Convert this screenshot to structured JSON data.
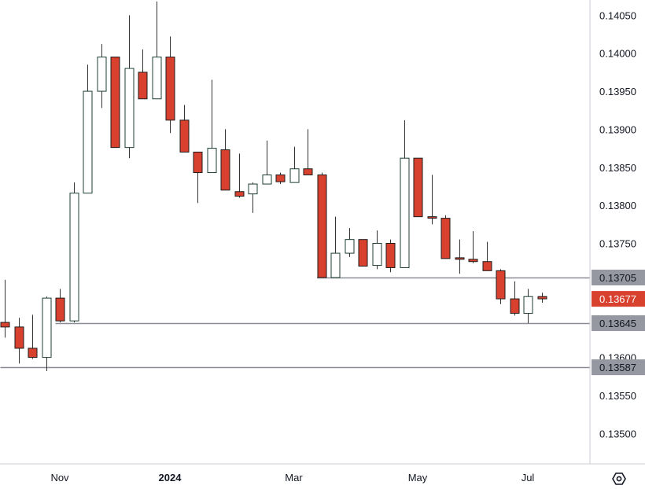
{
  "chart_data": {
    "type": "candlestick",
    "title": "",
    "xlabel": "",
    "ylabel": "",
    "ylim": [
      0.1346,
      0.1407
    ],
    "y_ticks": [
      {
        "value": 0.135,
        "label": "0.13500"
      },
      {
        "value": 0.1355,
        "label": "0.13550"
      },
      {
        "value": 0.136,
        "label": "0.13600"
      },
      {
        "value": 0.1375,
        "label": "0.13750"
      },
      {
        "value": 0.138,
        "label": "0.13800"
      },
      {
        "value": 0.1385,
        "label": "0.13850"
      },
      {
        "value": 0.139,
        "label": "0.13900"
      },
      {
        "value": 0.1395,
        "label": "0.13950"
      },
      {
        "value": 0.14,
        "label": "0.14000"
      },
      {
        "value": 0.1405,
        "label": "0.14050"
      }
    ],
    "x_ticks": [
      {
        "index": 4,
        "label": "Nov",
        "bold": false
      },
      {
        "index": 12,
        "label": "2024",
        "bold": true
      },
      {
        "index": 21,
        "label": "Mar",
        "bold": false
      },
      {
        "index": 30,
        "label": "May",
        "bold": false
      },
      {
        "index": 38,
        "label": "Jul",
        "bold": false
      }
    ],
    "candles": [
      {
        "o": 0.13646,
        "h": 0.13702,
        "l": 0.13626,
        "c": 0.1364
      },
      {
        "o": 0.1364,
        "h": 0.13652,
        "l": 0.13592,
        "c": 0.13612
      },
      {
        "o": 0.13612,
        "h": 0.13656,
        "l": 0.13598,
        "c": 0.136
      },
      {
        "o": 0.136,
        "h": 0.1368,
        "l": 0.13582,
        "c": 0.13678
      },
      {
        "o": 0.13678,
        "h": 0.1369,
        "l": 0.13646,
        "c": 0.13648
      },
      {
        "o": 0.13648,
        "h": 0.1383,
        "l": 0.13646,
        "c": 0.13816
      },
      {
        "o": 0.13816,
        "h": 0.13985,
        "l": 0.13816,
        "c": 0.1395
      },
      {
        "o": 0.1395,
        "h": 0.14012,
        "l": 0.13928,
        "c": 0.13995
      },
      {
        "o": 0.13995,
        "h": 0.13995,
        "l": 0.13876,
        "c": 0.13876
      },
      {
        "o": 0.13876,
        "h": 0.1405,
        "l": 0.13862,
        "c": 0.1398
      },
      {
        "o": 0.13975,
        "h": 0.14005,
        "l": 0.1394,
        "c": 0.1394
      },
      {
        "o": 0.1394,
        "h": 0.14068,
        "l": 0.1394,
        "c": 0.13995
      },
      {
        "o": 0.13995,
        "h": 0.14022,
        "l": 0.13895,
        "c": 0.13912
      },
      {
        "o": 0.13912,
        "h": 0.13932,
        "l": 0.1387,
        "c": 0.1387
      },
      {
        "o": 0.1387,
        "h": 0.1387,
        "l": 0.13803,
        "c": 0.13843
      },
      {
        "o": 0.13843,
        "h": 0.13965,
        "l": 0.13843,
        "c": 0.13875
      },
      {
        "o": 0.13873,
        "h": 0.139,
        "l": 0.1382,
        "c": 0.1382
      },
      {
        "o": 0.13818,
        "h": 0.13868,
        "l": 0.1381,
        "c": 0.13812
      },
      {
        "o": 0.13815,
        "h": 0.1383,
        "l": 0.1379,
        "c": 0.13828
      },
      {
        "o": 0.13828,
        "h": 0.13885,
        "l": 0.13828,
        "c": 0.1384
      },
      {
        "o": 0.1384,
        "h": 0.13843,
        "l": 0.13828,
        "c": 0.13831
      },
      {
        "o": 0.1383,
        "h": 0.13877,
        "l": 0.1383,
        "c": 0.13848
      },
      {
        "o": 0.13848,
        "h": 0.139,
        "l": 0.1384,
        "c": 0.1384
      },
      {
        "o": 0.1384,
        "h": 0.13843,
        "l": 0.13705,
        "c": 0.13705
      },
      {
        "o": 0.13705,
        "h": 0.13785,
        "l": 0.13705,
        "c": 0.13737
      },
      {
        "o": 0.13737,
        "h": 0.1377,
        "l": 0.13732,
        "c": 0.13755
      },
      {
        "o": 0.13755,
        "h": 0.13755,
        "l": 0.1372,
        "c": 0.1372
      },
      {
        "o": 0.13721,
        "h": 0.13767,
        "l": 0.13716,
        "c": 0.1375
      },
      {
        "o": 0.1375,
        "h": 0.13755,
        "l": 0.13712,
        "c": 0.13718
      },
      {
        "o": 0.13718,
        "h": 0.13912,
        "l": 0.13718,
        "c": 0.13862
      },
      {
        "o": 0.13862,
        "h": 0.13862,
        "l": 0.13785,
        "c": 0.13785
      },
      {
        "o": 0.13785,
        "h": 0.1384,
        "l": 0.13775,
        "c": 0.13783
      },
      {
        "o": 0.13783,
        "h": 0.13787,
        "l": 0.1373,
        "c": 0.1373
      },
      {
        "o": 0.13731,
        "h": 0.13755,
        "l": 0.1371,
        "c": 0.13729
      },
      {
        "o": 0.13729,
        "h": 0.13766,
        "l": 0.13724,
        "c": 0.13726
      },
      {
        "o": 0.13726,
        "h": 0.13752,
        "l": 0.13714,
        "c": 0.13714
      },
      {
        "o": 0.13714,
        "h": 0.13716,
        "l": 0.1367,
        "c": 0.13677
      },
      {
        "o": 0.13677,
        "h": 0.137,
        "l": 0.13655,
        "c": 0.13658
      },
      {
        "o": 0.13658,
        "h": 0.1369,
        "l": 0.13645,
        "c": 0.1368
      },
      {
        "o": 0.1368,
        "h": 0.13685,
        "l": 0.13672,
        "c": 0.13677
      }
    ],
    "horizontal_levels": [
      {
        "value": 0.13705,
        "label": "0.13705",
        "from_index": 23
      },
      {
        "value": 0.13645,
        "label": "0.13645",
        "from_index": 4
      },
      {
        "value": 0.13587,
        "label": "0.13587",
        "from_index": 0
      }
    ],
    "last_price": {
      "value": 0.13677,
      "label": "0.13677"
    },
    "colors": {
      "up_body": "#ffffff",
      "up_border": "#1c3d32",
      "down_body": "#d9412f",
      "down_border": "#1c1c1c",
      "wick": "#333333",
      "level_line": "#8a8d96",
      "level_badge": "#9598a1",
      "last_badge": "#d9412f",
      "axis_line": "#c8cbd2"
    }
  },
  "settings_icon": "gear-hexagon-icon"
}
